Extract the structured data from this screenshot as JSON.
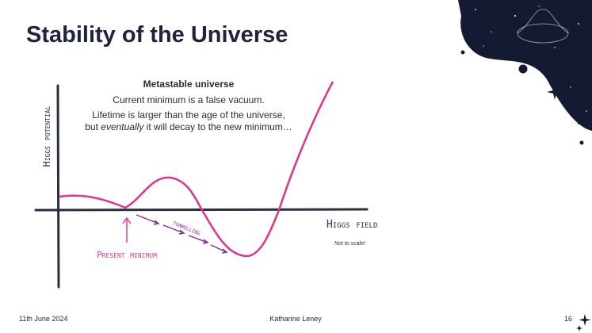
{
  "title": "Stability of the Universe",
  "panel": {
    "heading": "Metastable universe",
    "line1": "Current minimum is a false vacuum.",
    "line2": "Lifetime is larger than the age of the universe,",
    "line3_start": "but",
    "line3_emphasis": "eventually",
    "line3_end": "it will decay to the new minimum…"
  },
  "diagram": {
    "y_axis_label": "Higgs potential",
    "x_axis_label": "Higgs field",
    "note": "Not to scale!",
    "marker_label": "Present minimum",
    "arrow_label": "tunnelling"
  },
  "footer": {
    "date": "11th June 2024",
    "author": "Katharine Leney",
    "page": "16"
  }
}
